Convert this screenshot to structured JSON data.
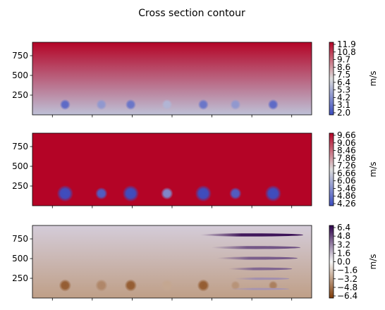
{
  "figure": {
    "title": "Cross section contour"
  },
  "chart_data": [
    {
      "type": "heatmap",
      "name": "panel-top",
      "title": "",
      "xlabel": "",
      "ylabel": "",
      "yticks": [
        250,
        500,
        750
      ],
      "ylim": [
        0,
        920
      ],
      "xlim": [
        0,
        1
      ],
      "xticks_count": 7,
      "colormap": "coolwarm",
      "colors": {
        "low": "#3b4cc0",
        "mid": "#dddddd",
        "high": "#b40426"
      },
      "colorbar": {
        "label": "m/s",
        "ticks": [
          "2.0",
          "3.1",
          "4.2",
          "5.3",
          "6.4",
          "7.5",
          "8.6",
          "9.7",
          "10.8",
          "11.9"
        ],
        "range": [
          2.0,
          11.9
        ]
      },
      "background": {
        "bottom": 6.0,
        "top": 11.9
      },
      "features": [
        {
          "kind": "circle",
          "x": 0.117,
          "y": 130,
          "r": 68,
          "center_value": 3.0
        },
        {
          "kind": "circle",
          "x": 0.247,
          "y": 130,
          "r": 68,
          "center_value": 4.6
        },
        {
          "kind": "circle",
          "x": 0.352,
          "y": 130,
          "r": 68,
          "center_value": 3.4
        },
        {
          "kind": "circle",
          "x": 0.482,
          "y": 130,
          "r": 68,
          "center_value": 5.6
        },
        {
          "kind": "circle",
          "x": 0.612,
          "y": 130,
          "r": 68,
          "center_value": 3.4
        },
        {
          "kind": "circle",
          "x": 0.727,
          "y": 130,
          "r": 68,
          "center_value": 4.6
        },
        {
          "kind": "circle",
          "x": 0.862,
          "y": 130,
          "r": 68,
          "center_value": 3.0
        }
      ]
    },
    {
      "type": "heatmap",
      "name": "panel-middle",
      "title": "",
      "xlabel": "",
      "ylabel": "",
      "yticks": [
        250,
        500,
        750
      ],
      "ylim": [
        0,
        920
      ],
      "xlim": [
        0,
        1
      ],
      "xticks_count": 7,
      "colormap": "coolwarm",
      "colors": {
        "low": "#3b4cc0",
        "mid": "#dddddd",
        "high": "#b40426"
      },
      "colorbar": {
        "label": "m/s",
        "ticks": [
          "4.26",
          "4.86",
          "5.46",
          "6.06",
          "6.66",
          "7.26",
          "7.86",
          "8.46",
          "9.06",
          "9.66"
        ],
        "range": [
          4.26,
          9.66
        ]
      },
      "background": {
        "bottom": 9.66,
        "top": 9.66
      },
      "features": [
        {
          "kind": "circle",
          "x": 0.117,
          "y": 155,
          "r": 105,
          "center_value": 4.3
        },
        {
          "kind": "circle",
          "x": 0.247,
          "y": 155,
          "r": 78,
          "center_value": 4.6
        },
        {
          "kind": "circle",
          "x": 0.352,
          "y": 155,
          "r": 105,
          "center_value": 4.3
        },
        {
          "kind": "circle",
          "x": 0.482,
          "y": 155,
          "r": 78,
          "center_value": 5.4
        },
        {
          "kind": "circle",
          "x": 0.612,
          "y": 155,
          "r": 105,
          "center_value": 4.3
        },
        {
          "kind": "circle",
          "x": 0.727,
          "y": 155,
          "r": 78,
          "center_value": 4.6
        },
        {
          "kind": "circle",
          "x": 0.862,
          "y": 155,
          "r": 105,
          "center_value": 4.3
        }
      ]
    },
    {
      "type": "heatmap",
      "name": "panel-bottom",
      "title": "",
      "xlabel": "",
      "ylabel": "",
      "yticks": [
        250,
        500,
        750
      ],
      "ylim": [
        0,
        920
      ],
      "xlim": [
        0,
        1
      ],
      "xticks_count": 7,
      "colormap": "PuOr",
      "colors": {
        "low": "#7f3b08",
        "mid": "#f7f7f7",
        "high": "#2d004b"
      },
      "colorbar": {
        "label": "m/s",
        "ticks": [
          "6.4",
          "4.8",
          "3.2",
          "1.6",
          "0.0",
          "−1.6",
          "−3.2",
          "−4.8",
          "−6.4"
        ],
        "range": [
          -7.5,
          7.5
        ]
      },
      "background": {
        "bottom": -3.5,
        "top": 1.3
      },
      "features": [
        {
          "kind": "circle",
          "x": 0.117,
          "y": 160,
          "r": 78,
          "center_value": -6.2
        },
        {
          "kind": "circle",
          "x": 0.247,
          "y": 160,
          "r": 78,
          "center_value": -4.5
        },
        {
          "kind": "circle",
          "x": 0.352,
          "y": 160,
          "r": 78,
          "center_value": -6.2
        },
        {
          "kind": "circle",
          "x": 0.482,
          "y": 160,
          "r": 78,
          "center_value": -3.2
        },
        {
          "kind": "circle",
          "x": 0.612,
          "y": 160,
          "r": 78,
          "center_value": -6.2
        },
        {
          "kind": "circle",
          "x": 0.727,
          "y": 160,
          "r": 60,
          "center_value": -4.0
        },
        {
          "kind": "circle",
          "x": 0.862,
          "y": 160,
          "r": 60,
          "center_value": -4.8
        },
        {
          "kind": "band",
          "x0": 0.6,
          "x1": 0.97,
          "y": 800,
          "h": 40,
          "center_value": 7.0
        },
        {
          "kind": "band",
          "x0": 0.64,
          "x1": 0.96,
          "y": 640,
          "h": 38,
          "center_value": 5.0
        },
        {
          "kind": "band",
          "x0": 0.66,
          "x1": 0.95,
          "y": 505,
          "h": 36,
          "center_value": 4.8
        },
        {
          "kind": "band",
          "x0": 0.7,
          "x1": 0.93,
          "y": 370,
          "h": 34,
          "center_value": 4.5
        },
        {
          "kind": "band",
          "x0": 0.72,
          "x1": 0.92,
          "y": 245,
          "h": 30,
          "center_value": 3.2
        },
        {
          "kind": "band",
          "x0": 0.7,
          "x1": 0.92,
          "y": 115,
          "h": 26,
          "center_value": 3.0
        }
      ]
    }
  ]
}
